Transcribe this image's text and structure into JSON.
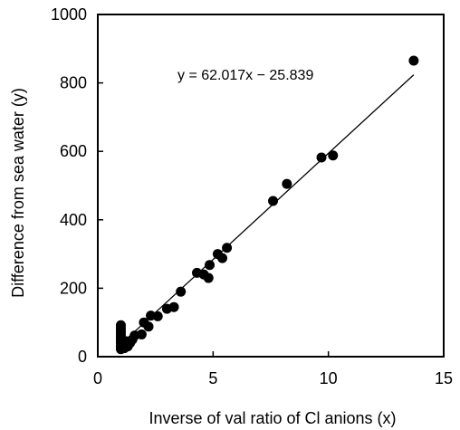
{
  "chart_data": {
    "type": "scatter",
    "title": "",
    "xlabel": "Inverse of val ratio of Cl anions (x)",
    "ylabel": "Difference from sea water (y)",
    "xlim": [
      0,
      15
    ],
    "ylim": [
      0,
      1000
    ],
    "x_ticks": [
      "0",
      "5",
      "10",
      "15"
    ],
    "y_ticks": [
      "0",
      "200",
      "400",
      "600",
      "800",
      "1000"
    ],
    "grid": false,
    "legend": "none",
    "marker_color": "#000000",
    "points": [
      {
        "x": 1.0,
        "y": 22
      },
      {
        "x": 1.0,
        "y": 30
      },
      {
        "x": 1.0,
        "y": 38
      },
      {
        "x": 1.0,
        "y": 45
      },
      {
        "x": 1.0,
        "y": 52
      },
      {
        "x": 1.0,
        "y": 60
      },
      {
        "x": 1.0,
        "y": 68
      },
      {
        "x": 1.0,
        "y": 75
      },
      {
        "x": 1.0,
        "y": 83
      },
      {
        "x": 1.0,
        "y": 92
      },
      {
        "x": 1.15,
        "y": 25
      },
      {
        "x": 1.2,
        "y": 35
      },
      {
        "x": 1.25,
        "y": 45
      },
      {
        "x": 1.3,
        "y": 30
      },
      {
        "x": 1.4,
        "y": 40
      },
      {
        "x": 1.5,
        "y": 50
      },
      {
        "x": 1.6,
        "y": 62
      },
      {
        "x": 1.9,
        "y": 65
      },
      {
        "x": 2.0,
        "y": 100
      },
      {
        "x": 2.2,
        "y": 88
      },
      {
        "x": 2.3,
        "y": 120
      },
      {
        "x": 2.6,
        "y": 118
      },
      {
        "x": 3.0,
        "y": 140
      },
      {
        "x": 3.3,
        "y": 145
      },
      {
        "x": 3.6,
        "y": 190
      },
      {
        "x": 4.3,
        "y": 245
      },
      {
        "x": 4.6,
        "y": 240
      },
      {
        "x": 4.8,
        "y": 230
      },
      {
        "x": 4.85,
        "y": 268
      },
      {
        "x": 5.2,
        "y": 300
      },
      {
        "x": 5.4,
        "y": 288
      },
      {
        "x": 5.6,
        "y": 318
      },
      {
        "x": 7.6,
        "y": 455
      },
      {
        "x": 8.2,
        "y": 505
      },
      {
        "x": 9.7,
        "y": 582
      },
      {
        "x": 10.2,
        "y": 588
      },
      {
        "x": 13.7,
        "y": 865
      }
    ],
    "trendline": {
      "label": "y = 62.017x − 25.839",
      "slope": 62.017,
      "intercept": -25.839,
      "x_start": 1.0,
      "x_end": 13.7
    }
  }
}
